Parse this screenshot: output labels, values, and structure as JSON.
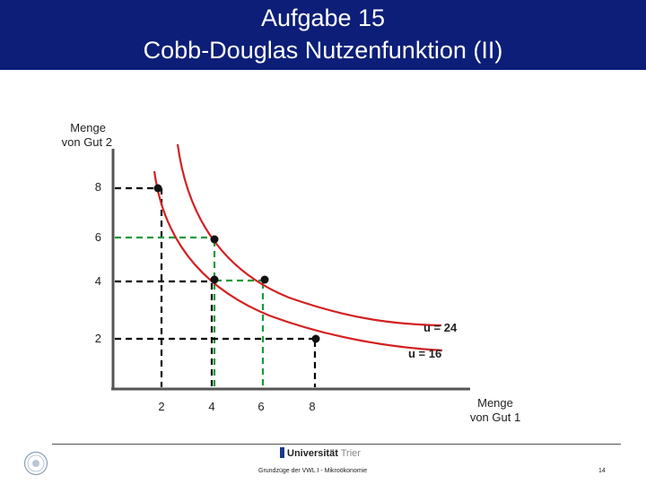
{
  "header": {
    "title_line1": "Aufgabe 15",
    "title_line2": "Cobb-Douglas Nutzenfunktion (II)"
  },
  "axes": {
    "y_label_line1": "Menge",
    "y_label_line2": "von Gut 2",
    "x_label_line1": "Menge",
    "x_label_line2": "von Gut 1",
    "x_ticks": [
      "2",
      "4",
      "6",
      "8"
    ],
    "y_ticks": [
      "8",
      "6",
      "4",
      "2"
    ]
  },
  "curves": {
    "u_high_label": "u = 24",
    "u_low_label": "u = 16",
    "color": "#d42020"
  },
  "points": [
    {
      "x": 2,
      "y": 8,
      "guide_color": "#000000"
    },
    {
      "x": 4,
      "y": 6,
      "guide_color": "#1a9a3a"
    },
    {
      "x": 4,
      "y": 4,
      "guide_color": "#000000"
    },
    {
      "x": 6,
      "y": 4,
      "guide_color": "#1a9a3a"
    },
    {
      "x": 8,
      "y": 2,
      "guide_color": "#000000"
    }
  ],
  "footer": {
    "university_name": "Universität",
    "university_city": "Trier",
    "course": "Grundzüge der VWL I - Mikroökonomie",
    "page": "14"
  }
}
